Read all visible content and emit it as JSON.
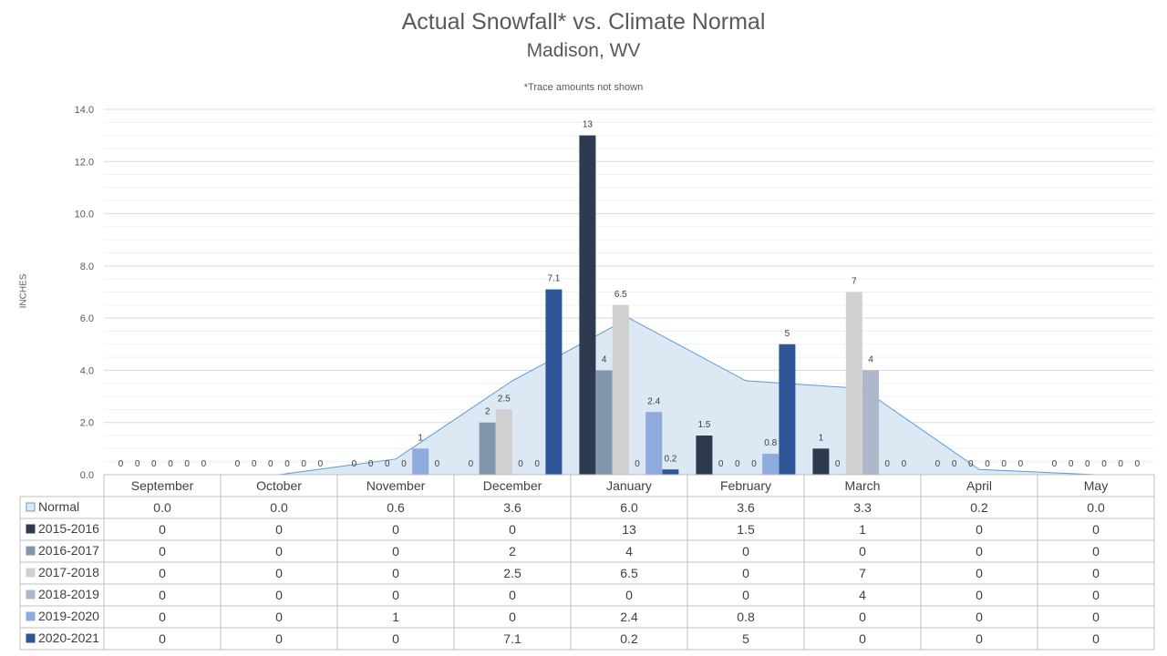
{
  "chart_data": {
    "type": "bar",
    "title": "Actual Snowfall* vs. Climate Normal",
    "subtitle": "Madison, WV",
    "annotation": "*Trace amounts not shown",
    "ylabel": "INCHES",
    "ylim": [
      0,
      14
    ],
    "ytick_step": 2,
    "ytick_labels": [
      "0.0",
      "2.0",
      "4.0",
      "6.0",
      "8.0",
      "10.0",
      "12.0",
      "14.0"
    ],
    "grid": true,
    "legend_placement": "data-table-left",
    "categories": [
      "September",
      "October",
      "November",
      "December",
      "January",
      "February",
      "March",
      "April",
      "May"
    ],
    "area_series": {
      "name": "Normal",
      "type": "area",
      "color": "#dce9f5",
      "line_color": "#5b9bd5",
      "values": [
        0.0,
        0.0,
        0.6,
        3.6,
        6.0,
        3.6,
        3.3,
        0.2,
        0.0
      ],
      "labels": [
        "0.0",
        "0.0",
        "0.6",
        "3.6",
        "6.0",
        "3.6",
        "3.3",
        "0.2",
        "0.0"
      ]
    },
    "series": [
      {
        "name": "2015-2016",
        "color": "#2e3a4f",
        "values": [
          0,
          0,
          0,
          0,
          13,
          1.5,
          1,
          0,
          0
        ]
      },
      {
        "name": "2016-2017",
        "color": "#8496ae",
        "values": [
          0,
          0,
          0,
          2,
          4,
          0,
          0,
          0,
          0
        ]
      },
      {
        "name": "2017-2018",
        "color": "#d0d0d0",
        "values": [
          0,
          0,
          0,
          2.5,
          6.5,
          0,
          7,
          0,
          0
        ]
      },
      {
        "name": "2018-2019",
        "color": "#adb9ca",
        "values": [
          0,
          0,
          0,
          0,
          0,
          0,
          4,
          0,
          0
        ]
      },
      {
        "name": "2019-2020",
        "color": "#8faadc",
        "values": [
          0,
          0,
          1,
          0,
          2.4,
          0.8,
          0,
          0,
          0
        ]
      },
      {
        "name": "2020-2021",
        "color": "#2f5597",
        "values": [
          0,
          0,
          0,
          7.1,
          0.2,
          5,
          0,
          0,
          0
        ]
      }
    ]
  }
}
